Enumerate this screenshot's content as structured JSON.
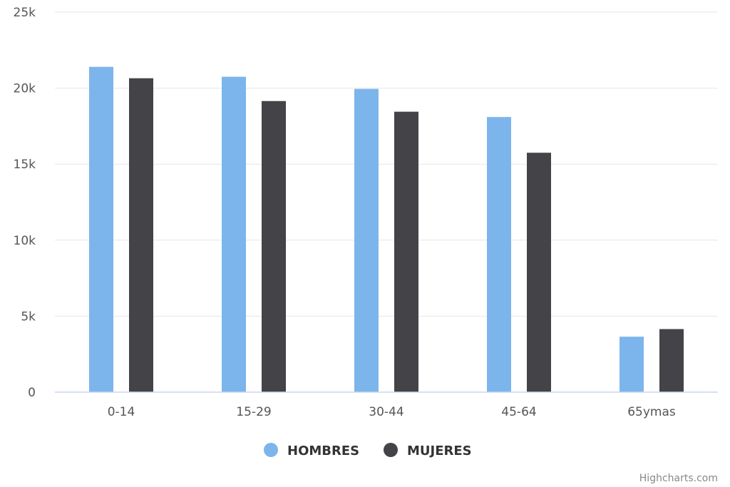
{
  "chart_data": {
    "type": "bar",
    "categories": [
      "0-14",
      "15-29",
      "30-44",
      "45-64",
      "65ymas"
    ],
    "series": [
      {
        "name": "HOMBRES",
        "color": "#7cb5ec",
        "values": [
          21400,
          20750,
          19950,
          18100,
          3650
        ]
      },
      {
        "name": "MUJERES",
        "color": "#434348",
        "values": [
          20650,
          19150,
          18450,
          15750,
          4150
        ]
      }
    ],
    "ylim": [
      0,
      25000
    ],
    "yticks": [
      0,
      5000,
      10000,
      15000,
      20000,
      25000
    ],
    "ytick_labels": [
      "0",
      "5k",
      "10k",
      "15k",
      "20k",
      "25k"
    ],
    "grid": true,
    "legend_position": "bottom-center"
  },
  "credits": "Highcharts.com"
}
